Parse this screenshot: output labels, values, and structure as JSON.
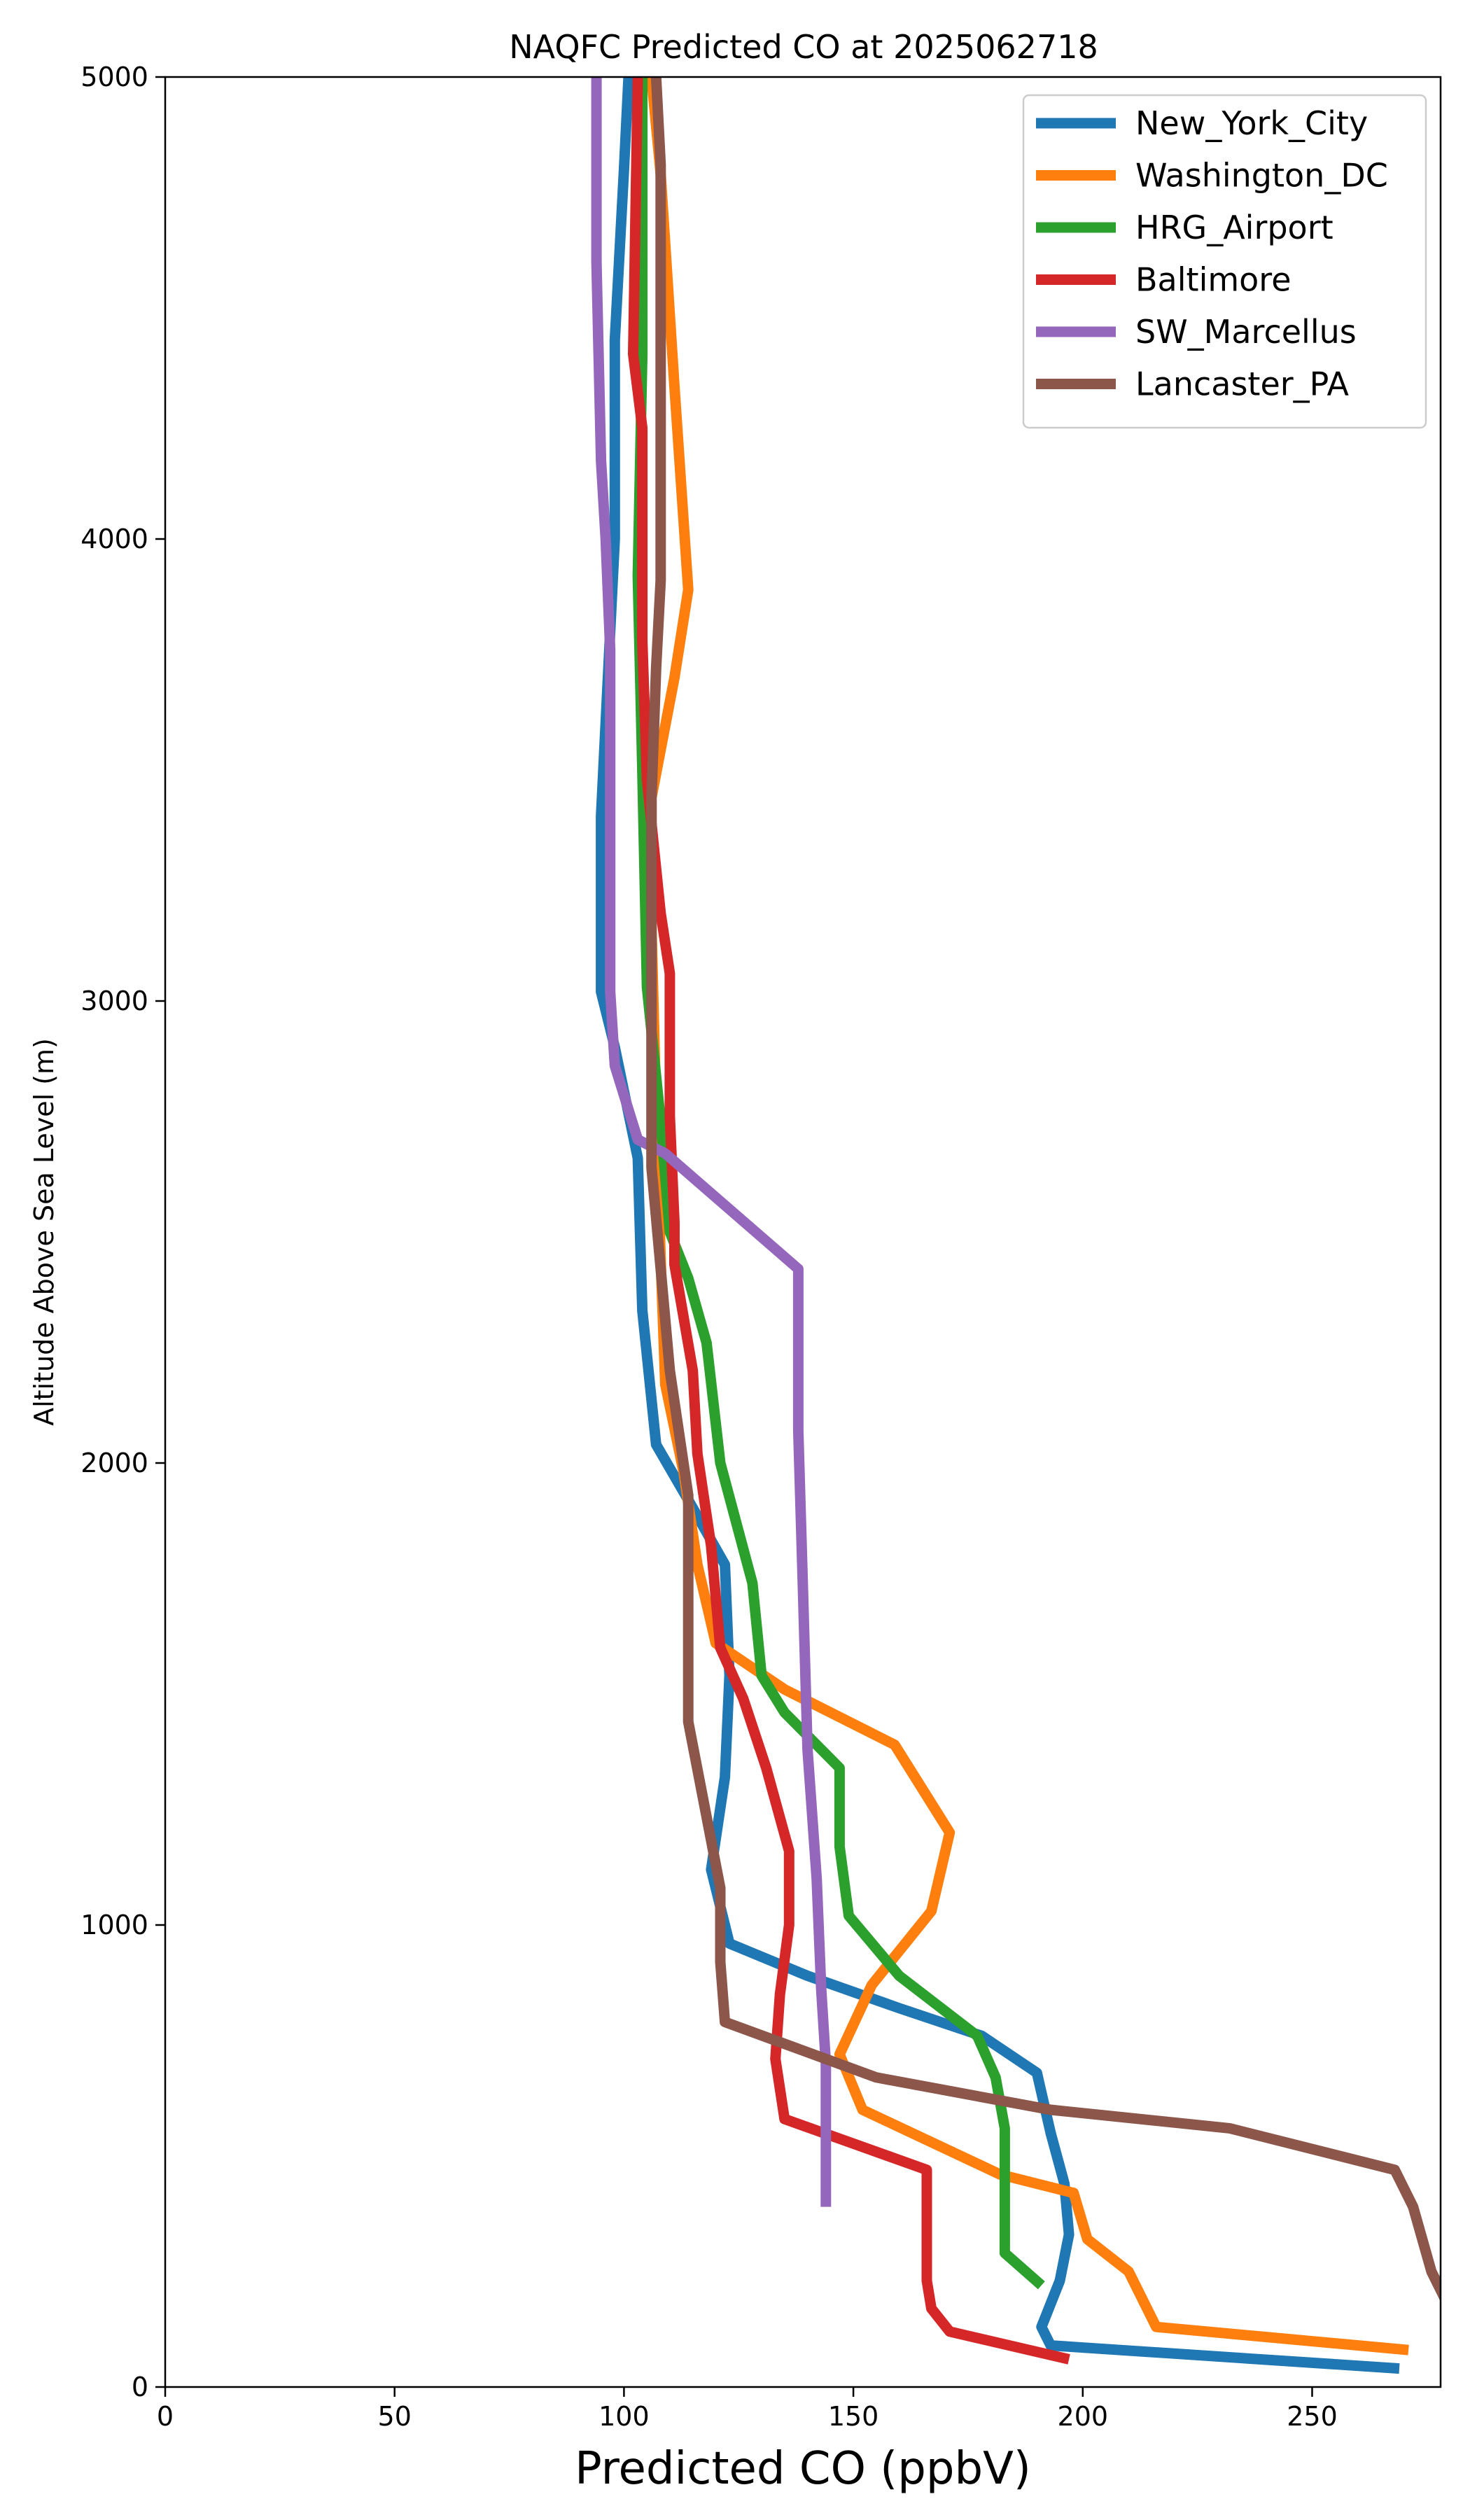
{
  "chart_data": {
    "type": "line",
    "title": "NAQFC Predicted CO at 2025062718",
    "xlabel": "Predicted CO (ppbV)",
    "ylabel": "Altitude Above Sea Level (m)",
    "xlim": [
      0,
      278
    ],
    "ylim": [
      0,
      5000
    ],
    "xticks": [
      0,
      50,
      100,
      150,
      200,
      250
    ],
    "yticks": [
      0,
      1000,
      2000,
      3000,
      4000,
      5000
    ],
    "grid": false,
    "legend_position": "top-right",
    "series": [
      {
        "name": "New_York_City",
        "color": "#1f77b4",
        "points": [
          [
            269,
            40
          ],
          [
            193,
            90
          ],
          [
            191,
            130
          ],
          [
            195,
            230
          ],
          [
            197,
            330
          ],
          [
            196,
            440
          ],
          [
            193,
            550
          ],
          [
            190,
            680
          ],
          [
            178,
            760
          ],
          [
            160,
            820
          ],
          [
            140,
            890
          ],
          [
            123,
            960
          ],
          [
            119,
            1120
          ],
          [
            122,
            1320
          ],
          [
            123,
            1540
          ],
          [
            122,
            1780
          ],
          [
            114,
            1920
          ],
          [
            107,
            2040
          ],
          [
            104,
            2330
          ],
          [
            103,
            2660
          ],
          [
            98,
            2900
          ],
          [
            95,
            3020
          ],
          [
            95,
            3400
          ],
          [
            97,
            3800
          ],
          [
            98,
            4000
          ],
          [
            98,
            4430
          ],
          [
            100,
            4800
          ],
          [
            101,
            5000
          ]
        ]
      },
      {
        "name": "Washington_DC",
        "color": "#ff7f0e",
        "points": [
          [
            271,
            80
          ],
          [
            216,
            130
          ],
          [
            210,
            250
          ],
          [
            201,
            320
          ],
          [
            198,
            420
          ],
          [
            182,
            460
          ],
          [
            152,
            600
          ],
          [
            147,
            720
          ],
          [
            154,
            870
          ],
          [
            167,
            1030
          ],
          [
            171,
            1200
          ],
          [
            159,
            1390
          ],
          [
            135,
            1510
          ],
          [
            120,
            1610
          ],
          [
            116,
            1780
          ],
          [
            113,
            1980
          ],
          [
            109,
            2170
          ],
          [
            108,
            2440
          ],
          [
            107,
            2770
          ],
          [
            106,
            3160
          ],
          [
            106,
            3440
          ],
          [
            111,
            3700
          ],
          [
            114,
            3890
          ],
          [
            111,
            4330
          ],
          [
            108,
            4790
          ],
          [
            106,
            5000
          ]
        ]
      },
      {
        "name": "HRG_Airport",
        "color": "#2ca02c",
        "points": [
          [
            191,
            220
          ],
          [
            183,
            290
          ],
          [
            183,
            420
          ],
          [
            183,
            560
          ],
          [
            181,
            670
          ],
          [
            177,
            760
          ],
          [
            160,
            890
          ],
          [
            149,
            1020
          ],
          [
            147,
            1170
          ],
          [
            147,
            1340
          ],
          [
            135,
            1460
          ],
          [
            130,
            1540
          ],
          [
            128,
            1740
          ],
          [
            121,
            2000
          ],
          [
            118,
            2260
          ],
          [
            114,
            2400
          ],
          [
            110,
            2500
          ],
          [
            108,
            2740
          ],
          [
            105,
            3030
          ],
          [
            104,
            3500
          ],
          [
            103,
            3920
          ],
          [
            104,
            4400
          ],
          [
            104,
            5000
          ]
        ]
      },
      {
        "name": "Baltimore",
        "color": "#d62728",
        "points": [
          [
            197,
            60
          ],
          [
            171,
            120
          ],
          [
            167,
            170
          ],
          [
            166,
            230
          ],
          [
            166,
            320
          ],
          [
            166,
            470
          ],
          [
            135,
            580
          ],
          [
            133,
            710
          ],
          [
            134,
            850
          ],
          [
            136,
            1000
          ],
          [
            136,
            1160
          ],
          [
            131,
            1340
          ],
          [
            126,
            1490
          ],
          [
            121,
            1600
          ],
          [
            119,
            1820
          ],
          [
            116,
            2020
          ],
          [
            115,
            2200
          ],
          [
            111,
            2430
          ],
          [
            111,
            2520
          ],
          [
            110,
            2750
          ],
          [
            110,
            3060
          ],
          [
            108,
            3190
          ],
          [
            105,
            3480
          ],
          [
            104,
            3780
          ],
          [
            104,
            4000
          ],
          [
            104,
            4240
          ],
          [
            102,
            4400
          ],
          [
            103,
            5000
          ]
        ]
      },
      {
        "name": "SW_Marcellus",
        "color": "#9467bd",
        "points": [
          [
            144,
            390
          ],
          [
            144,
            700
          ],
          [
            143,
            860
          ],
          [
            142,
            1100
          ],
          [
            140,
            1380
          ],
          [
            139,
            1730
          ],
          [
            138,
            2070
          ],
          [
            138,
            2170
          ],
          [
            138,
            2420
          ],
          [
            109,
            2670
          ],
          [
            103,
            2700
          ],
          [
            98,
            2860
          ],
          [
            97,
            3020
          ],
          [
            97,
            3240
          ],
          [
            97,
            3760
          ],
          [
            96,
            4000
          ],
          [
            95,
            4170
          ],
          [
            94,
            4600
          ],
          [
            94,
            5000
          ]
        ]
      },
      {
        "name": "Lancaster_PA",
        "color": "#8c564b",
        "points": [
          [
            279,
            190
          ],
          [
            276,
            250
          ],
          [
            274,
            320
          ],
          [
            272,
            390
          ],
          [
            268,
            470
          ],
          [
            232,
            560
          ],
          [
            193,
            600
          ],
          [
            155,
            670
          ],
          [
            122,
            790
          ],
          [
            121,
            920
          ],
          [
            121,
            1080
          ],
          [
            114,
            1440
          ],
          [
            114,
            1660
          ],
          [
            114,
            1930
          ],
          [
            110,
            2200
          ],
          [
            107,
            2530
          ],
          [
            106,
            2640
          ],
          [
            106,
            2870
          ],
          [
            106,
            3160
          ],
          [
            106,
            3440
          ],
          [
            107,
            3720
          ],
          [
            108,
            3910
          ],
          [
            108,
            4400
          ],
          [
            108,
            4810
          ],
          [
            107,
            5000
          ]
        ]
      }
    ]
  }
}
